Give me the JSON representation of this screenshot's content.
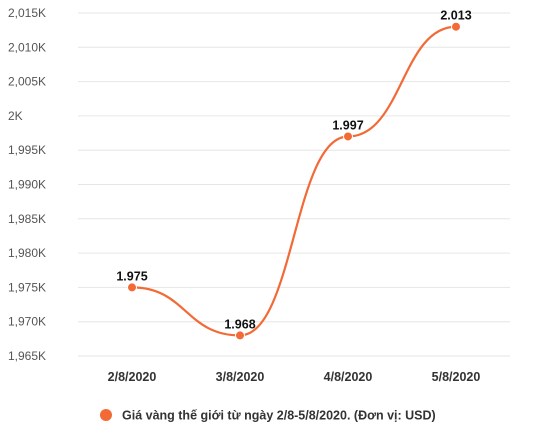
{
  "chart_data": {
    "type": "line",
    "categories": [
      "2/8/2020",
      "3/8/2020",
      "4/8/2020",
      "5/8/2020"
    ],
    "series": [
      {
        "name": "Giá vàng thế giới từ ngày 2/8-5/8/2020. (Đơn vị: USD)",
        "values": [
          1975,
          1968,
          1997,
          2013
        ],
        "data_labels": [
          "1.975",
          "1.968",
          "1.997",
          "2.013"
        ],
        "color": "#f26a35"
      }
    ],
    "yticks": [
      1965,
      1970,
      1975,
      1980,
      1985,
      1990,
      1995,
      2000,
      2005,
      2010,
      2015
    ],
    "ytick_labels": [
      "1,965K",
      "1,970K",
      "1,975K",
      "1,980K",
      "1,985K",
      "1,990K",
      "1,995K",
      "2K",
      "2,005K",
      "2,010K",
      "2,015K"
    ],
    "ylim": [
      1965,
      2015
    ],
    "grid": true,
    "legend_position": "bottom",
    "grid_color": "#e6e6e6"
  }
}
